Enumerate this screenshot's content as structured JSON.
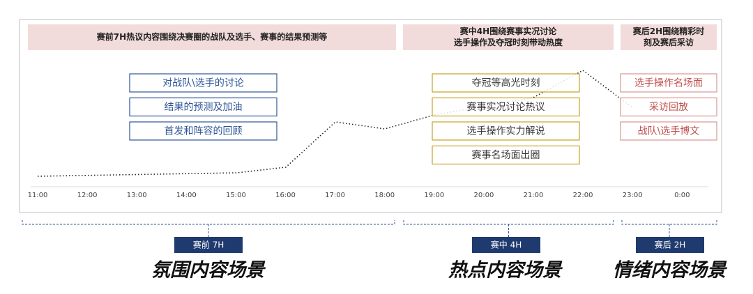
{
  "phases": [
    {
      "header": [
        "赛前7H热议内容围绕决赛圈的战队及选手、赛事的结果预测等"
      ],
      "items": [
        "对战队\\选手的讨论",
        "结果的预测及加油",
        "首发和阵容的回顾"
      ],
      "tag": "赛前 7H",
      "scene": "氛围内容场景"
    },
    {
      "header": [
        "赛中4H围绕赛事实况讨论",
        "选手操作及夺冠时刻带动热度"
      ],
      "items": [
        "夺冠等高光时刻",
        "赛事实况讨论热议",
        "选手操作实力解说",
        "赛事名场面出圈"
      ],
      "tag": "赛中 4H",
      "scene": "热点内容场景"
    },
    {
      "header": [
        "赛后2H围绕精彩时",
        "刻及赛后采访"
      ],
      "items": [
        "选手操作名场面",
        "采访回放",
        "战队\\选手博文"
      ],
      "tag": "赛后 2H",
      "scene": "情绪内容场景"
    }
  ],
  "times": [
    "11:00",
    "12:00",
    "13:00",
    "14:00",
    "15:00",
    "16:00",
    "17:00",
    "18:00",
    "19:00",
    "20:00",
    "21:00",
    "22:00",
    "23:00",
    "0:00"
  ]
}
